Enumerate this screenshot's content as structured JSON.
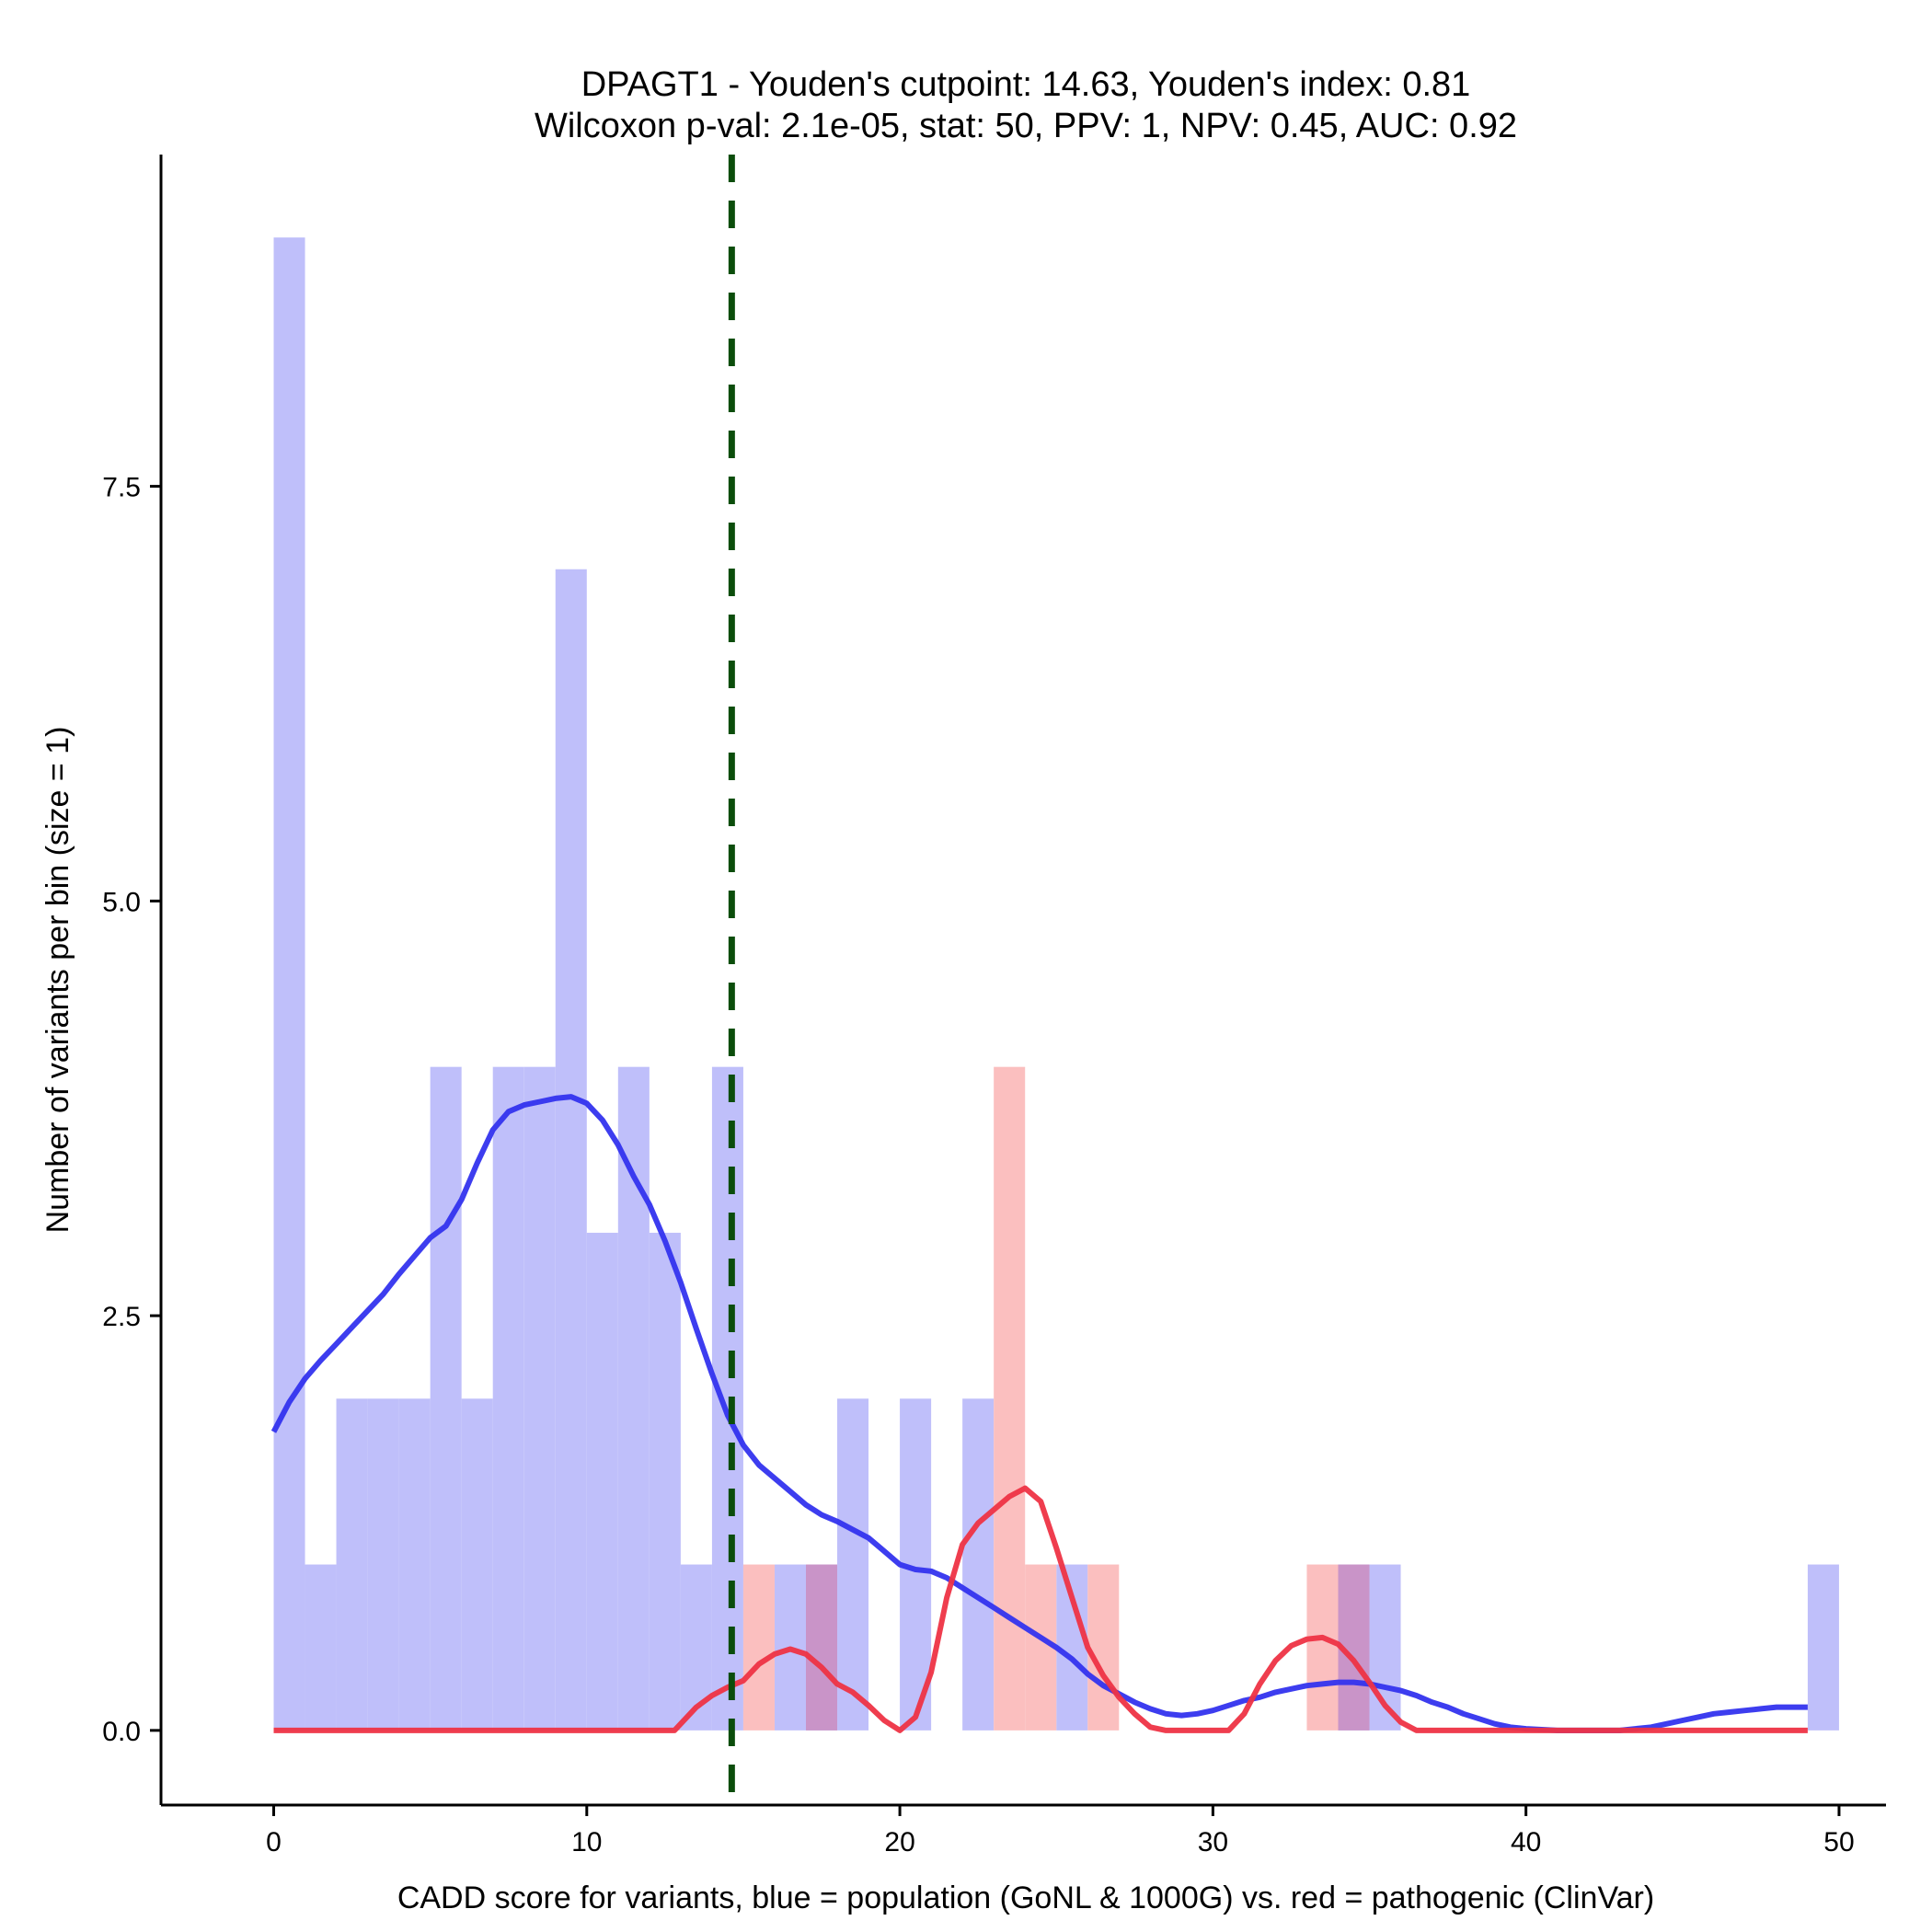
{
  "chart_data": {
    "type": "bar",
    "title_line1": "DPAGT1 - Youden's cutpoint: 14.63, Youden's index: 0.81",
    "title_line2": "Wilcoxon p-val: 2.1e-05, stat: 50, PPV: 1, NPV: 0.45, AUC: 0.92",
    "xlabel": "CADD score for variants, blue = population (GoNL & 1000G) vs. red = pathogenic (ClinVar)",
    "ylabel": "Number of variants per bin (size = 1)",
    "xlim": [
      -3.6,
      51.5
    ],
    "ylim": [
      -0.45,
      9.5
    ],
    "x_ticks": [
      0,
      10,
      20,
      30,
      40,
      50
    ],
    "x_tick_labels": [
      "0",
      "10",
      "20",
      "30",
      "40",
      "50"
    ],
    "y_ticks": [
      0,
      2.5,
      5,
      7.5
    ],
    "y_tick_labels": [
      "0.0",
      "2.5",
      "5.0",
      "7.5"
    ],
    "bin_width": 1,
    "cutpoint": 14.63,
    "colors": {
      "population_bar": "#bfbffa",
      "pathogenic_bar": "#fbbfbf",
      "overlap_bar": "#c994c8",
      "population_line": "#3333ee",
      "pathogenic_line": "#ee3344",
      "cutpoint_line": "#0b4d0b",
      "axis": "#000000"
    },
    "series": [
      {
        "group": "population",
        "bins": [
          {
            "x0": 0,
            "count": 9
          },
          {
            "x0": 1,
            "count": 1
          },
          {
            "x0": 2,
            "count": 2
          },
          {
            "x0": 3,
            "count": 2
          },
          {
            "x0": 4,
            "count": 2
          },
          {
            "x0": 5,
            "count": 4
          },
          {
            "x0": 6,
            "count": 2
          },
          {
            "x0": 7,
            "count": 4
          },
          {
            "x0": 8,
            "count": 4
          },
          {
            "x0": 9,
            "count": 7
          },
          {
            "x0": 10,
            "count": 3
          },
          {
            "x0": 11,
            "count": 4
          },
          {
            "x0": 12,
            "count": 3
          },
          {
            "x0": 13,
            "count": 1
          },
          {
            "x0": 14,
            "count": 4
          },
          {
            "x0": 16,
            "count": 1
          },
          {
            "x0": 17,
            "count": 1
          },
          {
            "x0": 18,
            "count": 2
          },
          {
            "x0": 20,
            "count": 2
          },
          {
            "x0": 22,
            "count": 2
          },
          {
            "x0": 25,
            "count": 1
          },
          {
            "x0": 34,
            "count": 1
          },
          {
            "x0": 35,
            "count": 1
          },
          {
            "x0": 49,
            "count": 1
          }
        ],
        "density_curve": [
          [
            0,
            1.8
          ],
          [
            0.5,
            1.98
          ],
          [
            1,
            2.12
          ],
          [
            1.5,
            2.23
          ],
          [
            2,
            2.33
          ],
          [
            2.5,
            2.43
          ],
          [
            3,
            2.53
          ],
          [
            3.5,
            2.63
          ],
          [
            4,
            2.75
          ],
          [
            4.5,
            2.86
          ],
          [
            5,
            2.97
          ],
          [
            5.5,
            3.04
          ],
          [
            6,
            3.2
          ],
          [
            6.5,
            3.42
          ],
          [
            7,
            3.62
          ],
          [
            7.5,
            3.73
          ],
          [
            8,
            3.77
          ],
          [
            8.5,
            3.79
          ],
          [
            9,
            3.81
          ],
          [
            9.5,
            3.82
          ],
          [
            10,
            3.78
          ],
          [
            10.5,
            3.68
          ],
          [
            11,
            3.53
          ],
          [
            11.5,
            3.34
          ],
          [
            12,
            3.17
          ],
          [
            12.5,
            2.95
          ],
          [
            13,
            2.7
          ],
          [
            13.5,
            2.42
          ],
          [
            14,
            2.15
          ],
          [
            14.5,
            1.9
          ],
          [
            15,
            1.72
          ],
          [
            15.5,
            1.6
          ],
          [
            16,
            1.52
          ],
          [
            16.5,
            1.44
          ],
          [
            17,
            1.36
          ],
          [
            17.5,
            1.3
          ],
          [
            18,
            1.26
          ],
          [
            18.5,
            1.21
          ],
          [
            19,
            1.16
          ],
          [
            19.5,
            1.08
          ],
          [
            20,
            1.0
          ],
          [
            20.5,
            0.97
          ],
          [
            21,
            0.96
          ],
          [
            21.5,
            0.92
          ],
          [
            22,
            0.86
          ],
          [
            22.5,
            0.8
          ],
          [
            23,
            0.74
          ],
          [
            23.5,
            0.68
          ],
          [
            24,
            0.62
          ],
          [
            24.5,
            0.56
          ],
          [
            25,
            0.5
          ],
          [
            25.5,
            0.43
          ],
          [
            26,
            0.34
          ],
          [
            26.5,
            0.27
          ],
          [
            27,
            0.22
          ],
          [
            27.5,
            0.17
          ],
          [
            28,
            0.13
          ],
          [
            28.5,
            0.1
          ],
          [
            29,
            0.09
          ],
          [
            29.5,
            0.1
          ],
          [
            30,
            0.12
          ],
          [
            30.5,
            0.15
          ],
          [
            31,
            0.18
          ],
          [
            31.5,
            0.2
          ],
          [
            32,
            0.23
          ],
          [
            32.5,
            0.25
          ],
          [
            33,
            0.27
          ],
          [
            33.5,
            0.28
          ],
          [
            34,
            0.29
          ],
          [
            34.5,
            0.29
          ],
          [
            35,
            0.28
          ],
          [
            35.5,
            0.26
          ],
          [
            36,
            0.24
          ],
          [
            36.5,
            0.21
          ],
          [
            37,
            0.17
          ],
          [
            37.5,
            0.14
          ],
          [
            38,
            0.1
          ],
          [
            38.5,
            0.07
          ],
          [
            39,
            0.04
          ],
          [
            39.5,
            0.02
          ],
          [
            40,
            0.01
          ],
          [
            41,
            0.0
          ],
          [
            42,
            0.0
          ],
          [
            43,
            0.0
          ],
          [
            43.5,
            0.01
          ],
          [
            44,
            0.02
          ],
          [
            44.5,
            0.04
          ],
          [
            45,
            0.06
          ],
          [
            45.5,
            0.08
          ],
          [
            46,
            0.1
          ],
          [
            46.5,
            0.11
          ],
          [
            47,
            0.12
          ],
          [
            47.5,
            0.13
          ],
          [
            48,
            0.14
          ],
          [
            48.5,
            0.14
          ],
          [
            49,
            0.14
          ]
        ]
      },
      {
        "group": "pathogenic",
        "bins": [
          {
            "x0": 15,
            "count": 1
          },
          {
            "x0": 17,
            "count": 1
          },
          {
            "x0": 23,
            "count": 4
          },
          {
            "x0": 24,
            "count": 1
          },
          {
            "x0": 26,
            "count": 1
          },
          {
            "x0": 33,
            "count": 1
          },
          {
            "x0": 34,
            "count": 1
          }
        ],
        "density_curve": [
          [
            0,
            0
          ],
          [
            5,
            0
          ],
          [
            10,
            0
          ],
          [
            12,
            0
          ],
          [
            12.8,
            0
          ],
          [
            13,
            0.04
          ],
          [
            13.5,
            0.14
          ],
          [
            14,
            0.21
          ],
          [
            14.5,
            0.26
          ],
          [
            15,
            0.3
          ],
          [
            15.5,
            0.4
          ],
          [
            16,
            0.46
          ],
          [
            16.5,
            0.49
          ],
          [
            17,
            0.46
          ],
          [
            17.5,
            0.38
          ],
          [
            18,
            0.28
          ],
          [
            18.5,
            0.23
          ],
          [
            19,
            0.15
          ],
          [
            19.5,
            0.06
          ],
          [
            20,
            0.0
          ],
          [
            20.5,
            0.08
          ],
          [
            21,
            0.35
          ],
          [
            21.5,
            0.8
          ],
          [
            22,
            1.12
          ],
          [
            22.5,
            1.25
          ],
          [
            23,
            1.33
          ],
          [
            23.5,
            1.41
          ],
          [
            24,
            1.46
          ],
          [
            24.5,
            1.38
          ],
          [
            25,
            1.1
          ],
          [
            25.5,
            0.8
          ],
          [
            26,
            0.5
          ],
          [
            26.5,
            0.33
          ],
          [
            27,
            0.2
          ],
          [
            27.5,
            0.1
          ],
          [
            28,
            0.02
          ],
          [
            28.5,
            0.0
          ],
          [
            29,
            0
          ],
          [
            30,
            0
          ],
          [
            30.5,
            0.0
          ],
          [
            31,
            0.1
          ],
          [
            31.5,
            0.28
          ],
          [
            32,
            0.42
          ],
          [
            32.5,
            0.51
          ],
          [
            33,
            0.55
          ],
          [
            33.5,
            0.56
          ],
          [
            34,
            0.52
          ],
          [
            34.5,
            0.42
          ],
          [
            35,
            0.29
          ],
          [
            35.5,
            0.15
          ],
          [
            36,
            0.05
          ],
          [
            36.5,
            0.0
          ],
          [
            37,
            0
          ],
          [
            40,
            0
          ],
          [
            45,
            0
          ],
          [
            49,
            0
          ]
        ]
      }
    ]
  }
}
